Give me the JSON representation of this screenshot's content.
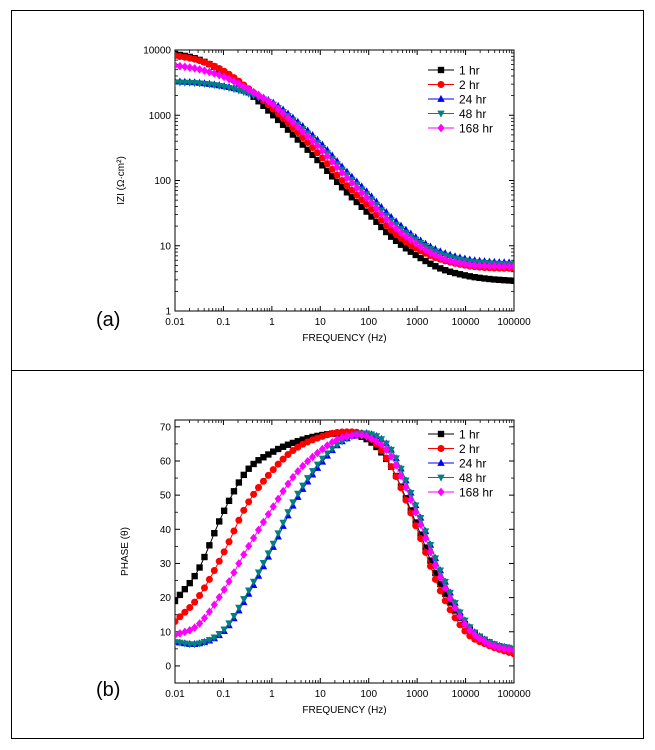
{
  "chart_data": [
    {
      "type": "line",
      "panel_label": "(a)",
      "xlabel": "FREQUENCY (Hz)",
      "ylabel": "IZI (Ω·cm²)",
      "x_scale": "log",
      "y_scale": "log",
      "xlim": [
        0.01,
        100000
      ],
      "ylim": [
        1,
        10000
      ],
      "x_ticks": [
        "0.01",
        "0.1",
        "1",
        "10",
        "100",
        "1000",
        "10000",
        "100000"
      ],
      "y_ticks": [
        "1",
        "10",
        "100",
        "1000",
        "10000"
      ],
      "grid": false,
      "legend_position": "top-right",
      "series": [
        {
          "name": "1 hr",
          "marker": "square",
          "color": "#000000",
          "x": [
            0.01,
            0.03,
            0.1,
            0.3,
            1,
            3,
            10,
            30,
            100,
            300,
            1000,
            3000,
            10000,
            30000,
            100000
          ],
          "y": [
            8700,
            7200,
            4600,
            2400,
            1050,
            470,
            185,
            75,
            31,
            13.5,
            7,
            4.5,
            3.5,
            3.1,
            2.9
          ]
        },
        {
          "name": "2 hr",
          "marker": "circle",
          "color": "#ff0000",
          "x": [
            0.01,
            0.03,
            0.1,
            0.3,
            1,
            3,
            10,
            30,
            100,
            300,
            1000,
            3000,
            10000,
            30000,
            100000
          ],
          "y": [
            8200,
            7000,
            4800,
            2700,
            1300,
            600,
            240,
            95,
            40,
            17,
            9,
            6.2,
            5,
            4.6,
            4.5
          ]
        },
        {
          "name": "24 hr",
          "marker": "triangle-up",
          "color": "#0000ff",
          "x": [
            0.01,
            0.03,
            0.1,
            0.3,
            1,
            3,
            10,
            30,
            100,
            300,
            1000,
            3000,
            10000,
            30000,
            100000
          ],
          "y": [
            3300,
            3150,
            2800,
            2300,
            1600,
            860,
            380,
            155,
            63,
            27,
            13,
            8.2,
            6.3,
            5.7,
            5.5
          ]
        },
        {
          "name": "48 hr",
          "marker": "triangle-down",
          "color": "#008080",
          "x": [
            0.01,
            0.03,
            0.1,
            0.3,
            1,
            3,
            10,
            30,
            100,
            300,
            1000,
            3000,
            10000,
            30000,
            100000
          ],
          "y": [
            3200,
            3100,
            2750,
            2200,
            1500,
            790,
            340,
            140,
            57,
            24,
            12,
            7.6,
            5.9,
            5.4,
            5.2
          ]
        },
        {
          "name": "168 hr",
          "marker": "diamond",
          "color": "#ff00ff",
          "x": [
            0.01,
            0.03,
            0.1,
            0.3,
            1,
            3,
            10,
            30,
            100,
            300,
            1000,
            3000,
            10000,
            30000,
            100000
          ],
          "y": [
            5800,
            5100,
            3900,
            2600,
            1500,
            720,
            310,
            125,
            50,
            21,
            10.5,
            6.6,
            5.2,
            4.9,
            4.8
          ]
        }
      ]
    },
    {
      "type": "line",
      "panel_label": "(b)",
      "xlabel": "FREQUENCY (Hz)",
      "ylabel": "PHASE (θ)",
      "x_scale": "log",
      "y_scale": "linear",
      "xlim": [
        0.01,
        100000
      ],
      "ylim": [
        -5,
        72
      ],
      "x_ticks": [
        "0.01",
        "0.1",
        "1",
        "10",
        "100",
        "1000",
        "10000",
        "100000"
      ],
      "y_ticks": [
        "0",
        "10",
        "20",
        "30",
        "40",
        "50",
        "60",
        "70"
      ],
      "grid": false,
      "legend_position": "top-right",
      "series": [
        {
          "name": "1 hr",
          "marker": "square",
          "color": "#000000",
          "x": [
            0.01,
            0.03,
            0.1,
            0.3,
            1,
            3,
            10,
            30,
            100,
            300,
            1000,
            3000,
            10000,
            30000,
            100000
          ],
          "y": [
            19,
            28,
            45,
            57,
            62.5,
            65.5,
            67.5,
            68,
            66,
            58,
            41,
            24,
            12,
            7,
            4.5
          ]
        },
        {
          "name": "2 hr",
          "marker": "circle",
          "color": "#ff0000",
          "x": [
            0.01,
            0.03,
            0.1,
            0.3,
            1,
            3,
            10,
            30,
            100,
            300,
            1000,
            3000,
            10000,
            30000,
            100000
          ],
          "y": [
            13,
            20,
            33,
            47,
            57,
            63.5,
            67,
            68.5,
            67,
            58,
            40,
            22,
            10,
            6,
            3.5
          ]
        },
        {
          "name": "24 hr",
          "marker": "triangle-up",
          "color": "#0000ff",
          "x": [
            0.01,
            0.03,
            0.1,
            0.3,
            1,
            3,
            10,
            30,
            100,
            300,
            1000,
            3000,
            10000,
            30000,
            100000
          ],
          "y": [
            7,
            6.5,
            10,
            20,
            34,
            48,
            59,
            66,
            68,
            63,
            46,
            28,
            13,
            7,
            5
          ]
        },
        {
          "name": "48 hr",
          "marker": "triangle-down",
          "color": "#008080",
          "x": [
            0.01,
            0.03,
            0.1,
            0.3,
            1,
            3,
            10,
            30,
            100,
            300,
            1000,
            3000,
            10000,
            30000,
            100000
          ],
          "y": [
            7,
            6.5,
            10.5,
            21,
            35,
            49,
            60,
            66,
            68,
            63,
            46,
            28,
            13,
            7,
            5
          ]
        },
        {
          "name": "168 hr",
          "marker": "diamond",
          "color": "#ff00ff",
          "x": [
            0.01,
            0.03,
            0.1,
            0.3,
            1,
            3,
            10,
            30,
            100,
            300,
            1000,
            3000,
            10000,
            30000,
            100000
          ],
          "y": [
            9,
            12,
            22,
            34,
            46,
            56,
            63,
            67,
            67,
            61,
            44,
            26,
            12,
            6.5,
            4.5
          ]
        }
      ]
    }
  ]
}
